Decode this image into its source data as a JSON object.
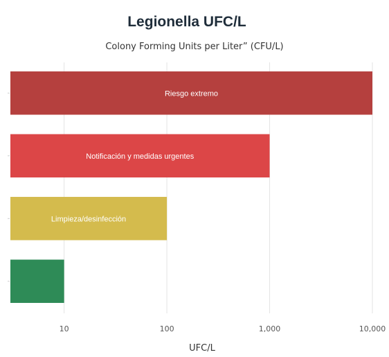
{
  "chart_data": {
    "type": "bar",
    "orientation": "horizontal",
    "title": "Legionella UFC/L",
    "subtitle": "Colony Forming Units per Liter” (CFU/L)",
    "xlabel": "UFC/L",
    "ylabel": "",
    "x_scale": "log",
    "xlim": [
      3,
      10000
    ],
    "xticks": [
      10,
      100,
      1000,
      10000
    ],
    "xtick_labels": [
      "10",
      "100",
      "1,000",
      "10,000"
    ],
    "grid": true,
    "legend": "none",
    "bars": [
      {
        "label": "Riesgo extremo",
        "value": 10000,
        "color": "#b5403e"
      },
      {
        "label": "Notificación y medidas urgentes",
        "value": 1000,
        "color": "#dc4647"
      },
      {
        "label": "Limpieza/desinfección",
        "value": 100,
        "color": "#d4bb4d"
      },
      {
        "label": "",
        "value": 10,
        "color": "#2e8b57"
      }
    ]
  }
}
